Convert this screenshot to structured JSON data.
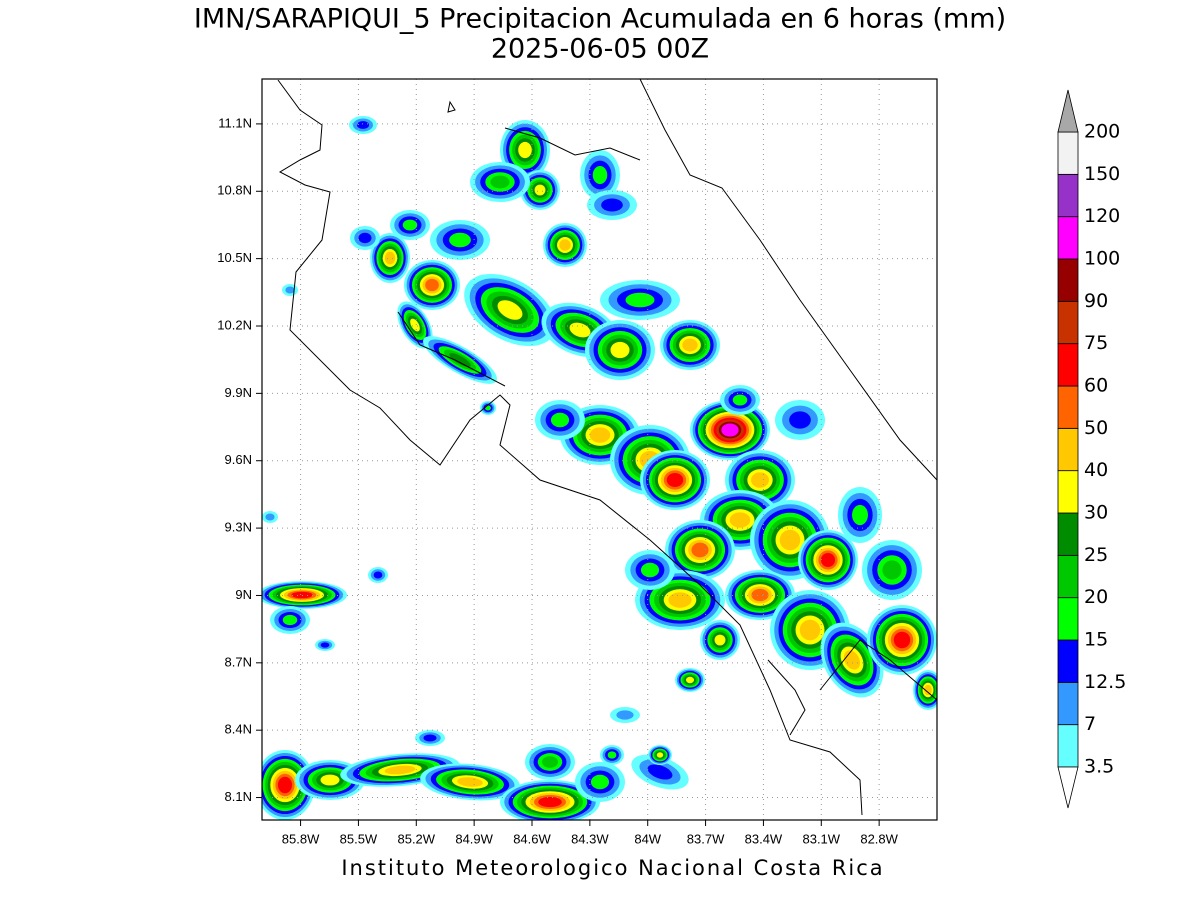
{
  "title": "IMN/SARAPIQUI_5 Precipitacion Acumulada en 6 horas (mm)",
  "subtitle": "2025-06-05 00Z",
  "footer": "Instituto Meteorologico Nacional Costa Rica",
  "map": {
    "xlim": [
      -86.0,
      -82.5
    ],
    "ylim": [
      8.0,
      11.3
    ],
    "xticks": [
      {
        "value": -85.8,
        "label": "85.8W"
      },
      {
        "value": -85.5,
        "label": "85.5W"
      },
      {
        "value": -85.2,
        "label": "85.2W"
      },
      {
        "value": -84.9,
        "label": "84.9W"
      },
      {
        "value": -84.6,
        "label": "84.6W"
      },
      {
        "value": -84.3,
        "label": "84.3W"
      },
      {
        "value": -84,
        "label": "84W"
      },
      {
        "value": -83.7,
        "label": "83.7W"
      },
      {
        "value": -83.4,
        "label": "83.4W"
      },
      {
        "value": -83.1,
        "label": "83.1W"
      },
      {
        "value": -82.8,
        "label": "82.8W"
      }
    ],
    "yticks": [
      {
        "value": 8.1,
        "label": "8.1N"
      },
      {
        "value": 8.4,
        "label": "8.4N"
      },
      {
        "value": 8.7,
        "label": "8.7N"
      },
      {
        "value": 9,
        "label": "9N"
      },
      {
        "value": 9.3,
        "label": "9.3N"
      },
      {
        "value": 9.6,
        "label": "9.6N"
      },
      {
        "value": 9.9,
        "label": "9.9N"
      },
      {
        "value": 10.2,
        "label": "10.2N"
      },
      {
        "value": 10.5,
        "label": "10.5N"
      },
      {
        "value": 10.8,
        "label": "10.8N"
      },
      {
        "value": 11.1,
        "label": "11.1N"
      }
    ],
    "grid": true
  },
  "colorbar": {
    "levels": [
      3.5,
      7,
      12.5,
      15,
      20,
      25,
      30,
      40,
      50,
      60,
      75,
      90,
      100,
      120,
      150,
      200
    ],
    "colors": [
      "#66ffff",
      "#3399ff",
      "#0000ff",
      "#00ff00",
      "#00c800",
      "#008c00",
      "#ffff00",
      "#ffc800",
      "#ff6400",
      "#ff0000",
      "#c83200",
      "#960000",
      "#ff00ff",
      "#9632c8",
      "#f2f2f2"
    ],
    "under_color": "#ffffff",
    "over_color": "#a8a8a8"
  }
}
